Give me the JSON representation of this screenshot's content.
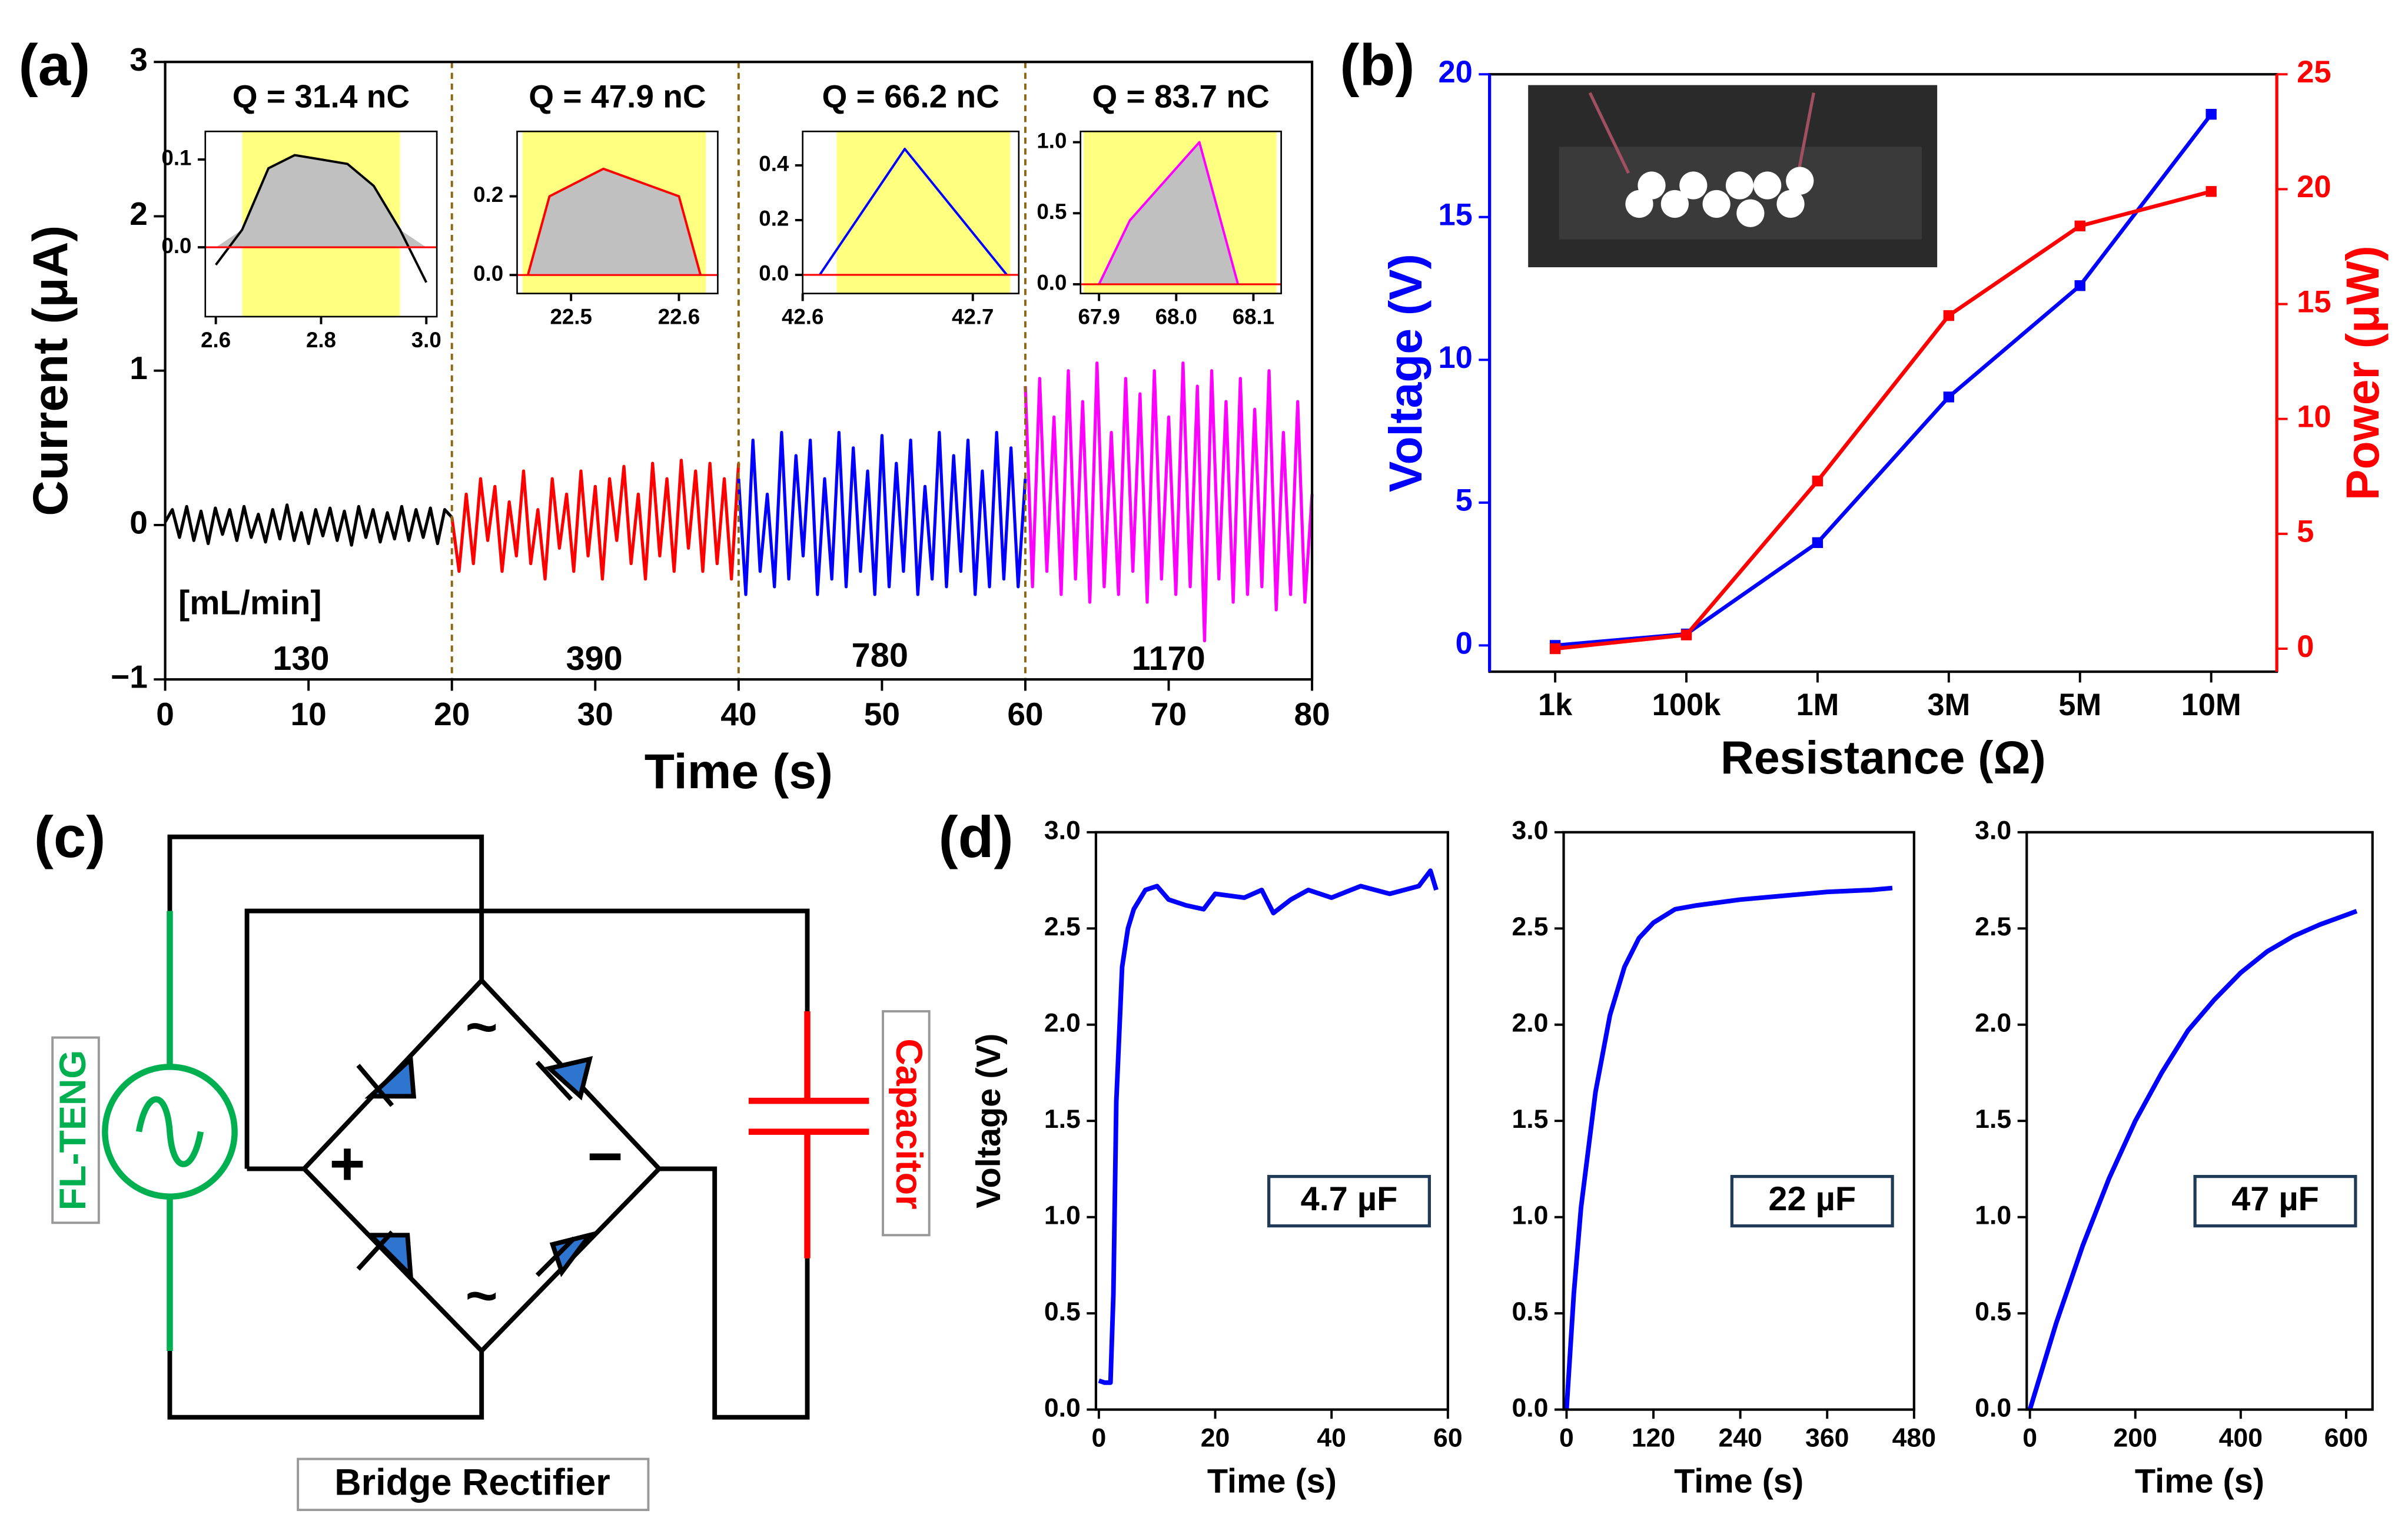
{
  "panel_labels": [
    "(a)",
    "(b)",
    "(c)",
    "(d)"
  ],
  "circuit": {
    "source": "FL-TENG",
    "load": "Capacitor",
    "rectifier": "Bridge Rectifier",
    "plus": "+",
    "minus": "−",
    "ac": "~"
  },
  "chart_data": [
    {
      "type": "line",
      "xlabel": "Time (s)",
      "ylabel": "Current  (μA)",
      "xlim": [
        0,
        80
      ],
      "ylim": [
        -1,
        3
      ],
      "xticks": [
        0,
        10,
        20,
        30,
        40,
        50,
        60,
        70,
        80
      ],
      "yticks": [
        {
          "value": -1,
          "label": "−1"
        },
        0,
        1,
        2,
        3
      ],
      "vlines": [
        20,
        40,
        60
      ],
      "annotations": [
        "[mL/min]",
        "130",
        "390",
        "780",
        "1170"
      ],
      "series": [
        {
          "color": "#000000",
          "x": [
            0,
            0.5,
            1,
            1.5,
            2,
            2.5,
            3,
            3.5,
            4,
            4.5,
            5,
            5.5,
            6,
            6.5,
            7,
            7.5,
            8,
            8.5,
            9,
            9.5,
            10,
            10.5,
            11,
            11.5,
            12,
            12.5,
            13,
            13.5,
            14,
            14.5,
            15,
            15.5,
            16,
            16.5,
            17,
            17.5,
            18,
            18.5,
            19,
            19.5,
            20
          ],
          "values": [
            0.02,
            0.1,
            -0.08,
            0.12,
            -0.1,
            0.09,
            -0.12,
            0.11,
            -0.06,
            0.1,
            -0.1,
            0.12,
            -0.08,
            0.07,
            -0.11,
            0.1,
            -0.09,
            0.13,
            -0.1,
            0.08,
            -0.12,
            0.1,
            -0.07,
            0.11,
            -0.1,
            0.09,
            -0.13,
            0.12,
            -0.08,
            0.1,
            -0.11,
            0.08,
            -0.09,
            0.12,
            -0.1,
            0.1,
            -0.08,
            0.11,
            -0.12,
            0.1,
            0.05
          ]
        },
        {
          "color": "#ff0000",
          "x": [
            20,
            20.5,
            21,
            21.5,
            22,
            22.5,
            23,
            23.5,
            24,
            24.5,
            25,
            25.5,
            26,
            26.5,
            27,
            27.5,
            28,
            28.5,
            29,
            29.5,
            30,
            30.5,
            31,
            31.5,
            32,
            32.5,
            33,
            33.5,
            34,
            34.5,
            35,
            35.5,
            36,
            36.5,
            37,
            37.5,
            38,
            38.5,
            39,
            39.5,
            40
          ],
          "values": [
            0.05,
            -0.3,
            0.2,
            -0.25,
            0.3,
            -0.1,
            0.25,
            -0.3,
            0.15,
            -0.2,
            0.35,
            -0.25,
            0.1,
            -0.35,
            0.3,
            -0.15,
            0.2,
            -0.3,
            0.35,
            -0.2,
            0.25,
            -0.35,
            0.3,
            -0.1,
            0.38,
            -0.25,
            0.2,
            -0.35,
            0.4,
            -0.2,
            0.3,
            -0.3,
            0.42,
            -0.15,
            0.35,
            -0.3,
            0.4,
            -0.25,
            0.3,
            -0.35,
            0.4
          ]
        },
        {
          "color": "#0000ff",
          "x": [
            40,
            40.5,
            41,
            41.5,
            42,
            42.5,
            43,
            43.5,
            44,
            44.5,
            45,
            45.5,
            46,
            46.5,
            47,
            47.5,
            48,
            48.5,
            49,
            49.5,
            50,
            50.5,
            51,
            51.5,
            52,
            52.5,
            53,
            53.5,
            54,
            54.5,
            55,
            55.5,
            56,
            56.5,
            57,
            57.5,
            58,
            58.5,
            59,
            59.5,
            60
          ],
          "values": [
            0.3,
            -0.45,
            0.55,
            -0.3,
            0.2,
            -0.4,
            0.6,
            -0.35,
            0.45,
            -0.2,
            0.55,
            -0.45,
            0.3,
            -0.35,
            0.6,
            -0.4,
            0.5,
            -0.3,
            0.35,
            -0.45,
            0.58,
            -0.4,
            0.4,
            -0.3,
            0.55,
            -0.45,
            0.25,
            -0.35,
            0.6,
            -0.4,
            0.45,
            -0.3,
            0.55,
            -0.45,
            0.35,
            -0.4,
            0.6,
            -0.35,
            0.5,
            -0.4,
            0.3
          ]
        },
        {
          "color": "#ff00ff",
          "x": [
            60,
            60.5,
            61,
            61.5,
            62,
            62.5,
            63,
            63.5,
            64,
            64.5,
            65,
            65.5,
            66,
            66.5,
            67,
            67.5,
            68,
            68.5,
            69,
            69.5,
            70,
            70.5,
            71,
            71.5,
            72,
            72.5,
            73,
            73.5,
            74,
            74.5,
            75,
            75.5,
            76,
            76.5,
            77,
            77.5,
            78,
            78.5,
            79,
            79.5,
            80
          ],
          "values": [
            0.9,
            -0.4,
            0.95,
            -0.3,
            0.7,
            -0.45,
            1.0,
            -0.35,
            0.8,
            -0.5,
            1.05,
            -0.4,
            0.6,
            -0.45,
            0.95,
            -0.3,
            0.85,
            -0.5,
            1.0,
            -0.35,
            0.7,
            -0.45,
            1.05,
            -0.4,
            0.9,
            -0.75,
            1.0,
            -0.35,
            0.8,
            -0.5,
            0.95,
            -0.45,
            0.75,
            -0.4,
            1.0,
            -0.55,
            0.6,
            -0.45,
            0.8,
            -0.5,
            0.2
          ]
        }
      ]
    },
    {
      "type": "line",
      "title": "Q = 31.4 nC",
      "xlim": [
        2.58,
        3.02
      ],
      "ylim": [
        -0.079,
        0.132
      ],
      "xticks": [
        2.6,
        2.8,
        {
          "value": 3.0,
          "label": "3.0"
        }
      ],
      "yticks": [
        {
          "value": 0,
          "label": "0.0"
        },
        0.1
      ],
      "highlight": [
        2.65,
        2.95
      ],
      "baseline_color": "#ff0000",
      "series": [
        {
          "color": "#000000",
          "fill": "#c0c0c0",
          "x": [
            2.6,
            2.65,
            2.7,
            2.75,
            2.8,
            2.85,
            2.9,
            2.95,
            3.0
          ],
          "values": [
            -0.02,
            0.02,
            0.09,
            0.105,
            0.1,
            0.095,
            0.07,
            0.02,
            -0.04
          ]
        }
      ]
    },
    {
      "type": "line",
      "title": "Q = 47.9 nC",
      "xlim": [
        22.45,
        22.636
      ],
      "ylim": [
        -0.047,
        0.365
      ],
      "xticks": [
        22.5,
        22.6
      ],
      "yticks": [
        {
          "value": 0,
          "label": "0.0"
        },
        0.2
      ],
      "highlight": [
        22.455,
        22.625
      ],
      "baseline_color": "#ff0000",
      "series": [
        {
          "color": "#ff0000",
          "fill": "#c0c0c0",
          "x": [
            22.46,
            22.48,
            22.53,
            22.6,
            22.62
          ],
          "values": [
            0,
            0.2,
            0.27,
            0.2,
            0
          ]
        }
      ]
    },
    {
      "type": "line",
      "title": "Q = 66.2 nC",
      "xlim": [
        42.6,
        42.727
      ],
      "ylim": [
        -0.068,
        0.524
      ],
      "xticks": [
        42.6,
        42.7
      ],
      "yticks": [
        {
          "value": 0,
          "label": "0.0"
        },
        0.2,
        0.4
      ],
      "highlight": [
        42.62,
        42.722
      ],
      "baseline_color": "#ff0000",
      "series": [
        {
          "color": "#0000ff",
          "x": [
            42.61,
            42.66,
            42.72
          ],
          "values": [
            0,
            0.46,
            0
          ]
        }
      ]
    },
    {
      "type": "line",
      "title": "Q = 83.7 nC",
      "xlim": [
        67.876,
        68.136
      ],
      "ylim": [
        -0.065,
        1.076
      ],
      "xticks": [
        67.9,
        {
          "value": 68.0,
          "label": "68.0"
        },
        68.1
      ],
      "yticks": [
        {
          "value": 0,
          "label": "0.0"
        },
        0.5,
        {
          "value": 1,
          "label": "1.0"
        }
      ],
      "highlight": [
        67.88,
        68.13
      ],
      "baseline_color": "#ff0000",
      "series": [
        {
          "color": "#ff00ff",
          "fill": "#c0c0c0",
          "x": [
            67.9,
            67.94,
            68.03,
            68.08
          ],
          "values": [
            0,
            0.45,
            1.0,
            0
          ]
        }
      ]
    },
    {
      "type": "line",
      "xlabel": "Resistance (Ω)",
      "ylabel": "Voltage (V)",
      "y2label": "Power (μW)",
      "categories": [
        "1k",
        "100k",
        "1M",
        "3M",
        "5M",
        "10M"
      ],
      "ylim": [
        -0.92,
        20
      ],
      "yticks": [
        0,
        5,
        10,
        15,
        20
      ],
      "y2lim": [
        -1,
        25
      ],
      "y2ticks": [
        0,
        5,
        10,
        15,
        20,
        25
      ],
      "markers": "square",
      "series": [
        {
          "color": "#0000ff",
          "values": [
            0,
            0.4,
            3.6,
            8.7,
            12.6,
            18.6
          ]
        },
        {
          "color": "#ff0000",
          "axis": "y2",
          "values": [
            0,
            0.6,
            7.3,
            14.5,
            18.4,
            19.9
          ]
        }
      ]
    },
    {
      "type": "line",
      "xlabel": "Time (s)",
      "ylabel": "Voltage (V)",
      "annotations": [
        "4.7 µF"
      ],
      "xlim": [
        -0.5,
        60
      ],
      "ylim": [
        0,
        3
      ],
      "xticks": [
        0,
        20,
        40,
        60
      ],
      "yticks": [
        {
          "value": 0,
          "label": "0.0"
        },
        0.5,
        {
          "value": 1,
          "label": "1.0"
        },
        1.5,
        {
          "value": 2,
          "label": "2.0"
        },
        2.5,
        {
          "value": 3,
          "label": "3.0"
        }
      ],
      "series": [
        {
          "color": "#0000ff",
          "x": [
            0,
            1,
            2,
            2.5,
            3,
            4,
            5,
            6,
            8,
            10,
            12,
            15,
            18,
            20,
            25,
            28,
            30,
            33,
            36,
            40,
            45,
            50,
            55,
            57,
            58
          ],
          "values": [
            0.15,
            0.14,
            0.14,
            0.6,
            1.6,
            2.3,
            2.5,
            2.6,
            2.7,
            2.72,
            2.65,
            2.62,
            2.6,
            2.68,
            2.66,
            2.7,
            2.58,
            2.65,
            2.7,
            2.66,
            2.72,
            2.68,
            2.72,
            2.8,
            2.7
          ]
        }
      ]
    },
    {
      "type": "line",
      "xlabel": "Time (s)",
      "annotations": [
        "22 µF"
      ],
      "xlim": [
        -4,
        480
      ],
      "ylim": [
        0,
        3
      ],
      "xticks": [
        0,
        120,
        240,
        360,
        480
      ],
      "yticks": [
        {
          "value": 0,
          "label": "0.0"
        },
        0.5,
        {
          "value": 1,
          "label": "1.0"
        },
        1.5,
        {
          "value": 2,
          "label": "2.0"
        },
        2.5,
        {
          "value": 3,
          "label": "3.0"
        }
      ],
      "series": [
        {
          "color": "#0000ff",
          "x": [
            0,
            10,
            20,
            40,
            60,
            80,
            100,
            120,
            150,
            180,
            240,
            300,
            360,
            420,
            450
          ],
          "values": [
            0,
            0.6,
            1.05,
            1.65,
            2.05,
            2.3,
            2.45,
            2.53,
            2.6,
            2.62,
            2.65,
            2.67,
            2.69,
            2.7,
            2.71
          ]
        }
      ]
    },
    {
      "type": "line",
      "xlabel": "Time (s)",
      "annotations": [
        "47 µF"
      ],
      "xlim": [
        -6,
        650
      ],
      "ylim": [
        0,
        3
      ],
      "xticks": [
        0,
        200,
        400,
        600
      ],
      "yticks": [
        {
          "value": 0,
          "label": "0.0"
        },
        0.5,
        {
          "value": 1,
          "label": "1.0"
        },
        1.5,
        {
          "value": 2,
          "label": "2.0"
        },
        2.5,
        {
          "value": 3,
          "label": "3.0"
        }
      ],
      "series": [
        {
          "color": "#0000ff",
          "x": [
            0,
            50,
            100,
            150,
            200,
            250,
            300,
            350,
            400,
            450,
            500,
            550,
            600,
            620
          ],
          "values": [
            0,
            0.45,
            0.85,
            1.2,
            1.5,
            1.75,
            1.97,
            2.13,
            2.27,
            2.38,
            2.46,
            2.52,
            2.57,
            2.59
          ]
        }
      ]
    }
  ]
}
